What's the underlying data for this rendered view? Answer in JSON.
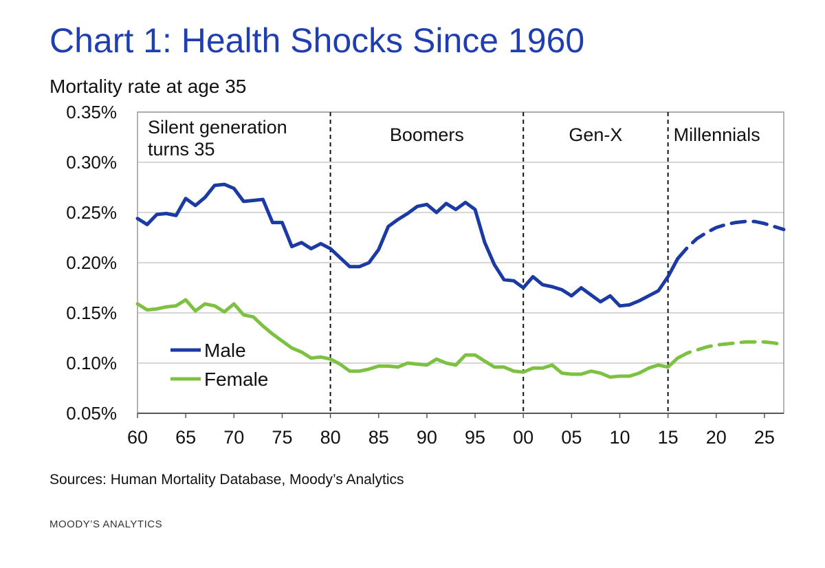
{
  "title": "Chart 1: Health Shocks Since 1960",
  "subtitle": "Mortality rate at age 35",
  "sources": "Sources: Human Mortality Database, Moody’s Analytics",
  "brand": "MOODY’S ANALYTICS",
  "colors": {
    "male": "#1b3aa3",
    "female": "#7dc142",
    "title": "#1f3fb0"
  },
  "chart_data": {
    "type": "line",
    "y_tick_labels": [
      "0.35%",
      "0.30%",
      "0.25%",
      "0.20%",
      "0.15%",
      "0.10%",
      "0.05%"
    ],
    "y_ticks": [
      0.35,
      0.3,
      0.25,
      0.2,
      0.15,
      0.1,
      0.05
    ],
    "ylim": [
      0.05,
      0.35
    ],
    "xlim": [
      1960,
      2027
    ],
    "x_ticks": [
      1960,
      1965,
      1970,
      1975,
      1980,
      1985,
      1990,
      1995,
      2000,
      2005,
      2010,
      2015,
      2020,
      2025
    ],
    "x_tick_labels": [
      "60",
      "65",
      "70",
      "75",
      "80",
      "85",
      "90",
      "95",
      "00",
      "05",
      "10",
      "15",
      "20",
      "25"
    ],
    "grid": "horizontal",
    "legend_position": "bottom-left",
    "generations": [
      {
        "label_lines": [
          "Silent generation",
          "turns 35"
        ],
        "start": 1960,
        "end": 1980
      },
      {
        "label_lines": [
          "Boomers"
        ],
        "start": 1980,
        "end": 2000
      },
      {
        "label_lines": [
          "Gen-X"
        ],
        "start": 2000,
        "end": 2015
      },
      {
        "label_lines": [
          "Millennials"
        ],
        "start": 2015,
        "end": 2027
      }
    ],
    "dividers": [
      1980,
      2000,
      2015
    ],
    "series": [
      {
        "name": "Male",
        "x": [
          1960,
          1961,
          1962,
          1963,
          1964,
          1965,
          1966,
          1967,
          1968,
          1969,
          1970,
          1971,
          1972,
          1973,
          1974,
          1975,
          1976,
          1977,
          1978,
          1979,
          1980,
          1981,
          1982,
          1983,
          1984,
          1985,
          1986,
          1987,
          1988,
          1989,
          1990,
          1991,
          1992,
          1993,
          1994,
          1995,
          1996,
          1997,
          1998,
          1999,
          2000,
          2001,
          2002,
          2003,
          2004,
          2005,
          2006,
          2007,
          2008,
          2009,
          2010,
          2011,
          2012,
          2013,
          2014,
          2015,
          2016
        ],
        "values": [
          0.244,
          0.238,
          0.248,
          0.249,
          0.247,
          0.264,
          0.257,
          0.265,
          0.277,
          0.278,
          0.274,
          0.261,
          0.262,
          0.263,
          0.24,
          0.24,
          0.216,
          0.22,
          0.214,
          0.219,
          0.214,
          0.205,
          0.196,
          0.196,
          0.2,
          0.213,
          0.236,
          0.243,
          0.249,
          0.256,
          0.258,
          0.25,
          0.259,
          0.253,
          0.26,
          0.253,
          0.22,
          0.198,
          0.183,
          0.182,
          0.175,
          0.186,
          0.178,
          0.176,
          0.173,
          0.167,
          0.175,
          0.168,
          0.161,
          0.167,
          0.157,
          0.158,
          0.162,
          0.167,
          0.172,
          0.186,
          0.204
        ],
        "projection": {
          "x": [
            2016,
            2017,
            2018,
            2019,
            2020,
            2021,
            2022,
            2023,
            2024,
            2025,
            2026,
            2027
          ],
          "values": [
            0.204,
            0.215,
            0.224,
            0.23,
            0.235,
            0.238,
            0.24,
            0.241,
            0.241,
            0.239,
            0.236,
            0.233
          ]
        }
      },
      {
        "name": "Female",
        "x": [
          1960,
          1961,
          1962,
          1963,
          1964,
          1965,
          1966,
          1967,
          1968,
          1969,
          1970,
          1971,
          1972,
          1973,
          1974,
          1975,
          1976,
          1977,
          1978,
          1979,
          1980,
          1981,
          1982,
          1983,
          1984,
          1985,
          1986,
          1987,
          1988,
          1989,
          1990,
          1991,
          1992,
          1993,
          1994,
          1995,
          1996,
          1997,
          1998,
          1999,
          2000,
          2001,
          2002,
          2003,
          2004,
          2005,
          2006,
          2007,
          2008,
          2009,
          2010,
          2011,
          2012,
          2013,
          2014,
          2015,
          2016
        ],
        "values": [
          0.159,
          0.153,
          0.154,
          0.156,
          0.157,
          0.163,
          0.152,
          0.159,
          0.157,
          0.151,
          0.159,
          0.148,
          0.146,
          0.137,
          0.129,
          0.122,
          0.115,
          0.111,
          0.105,
          0.106,
          0.104,
          0.099,
          0.092,
          0.092,
          0.094,
          0.097,
          0.097,
          0.096,
          0.1,
          0.099,
          0.098,
          0.104,
          0.1,
          0.098,
          0.108,
          0.108,
          0.102,
          0.096,
          0.096,
          0.092,
          0.091,
          0.095,
          0.095,
          0.098,
          0.09,
          0.089,
          0.089,
          0.092,
          0.09,
          0.086,
          0.087,
          0.087,
          0.09,
          0.095,
          0.098,
          0.096,
          0.105
        ],
        "projection": {
          "x": [
            2016,
            2017,
            2018,
            2019,
            2020,
            2021,
            2022,
            2023,
            2024,
            2025,
            2026,
            2027
          ],
          "values": [
            0.105,
            0.11,
            0.113,
            0.116,
            0.118,
            0.119,
            0.12,
            0.121,
            0.121,
            0.121,
            0.12,
            0.118
          ]
        }
      }
    ]
  }
}
